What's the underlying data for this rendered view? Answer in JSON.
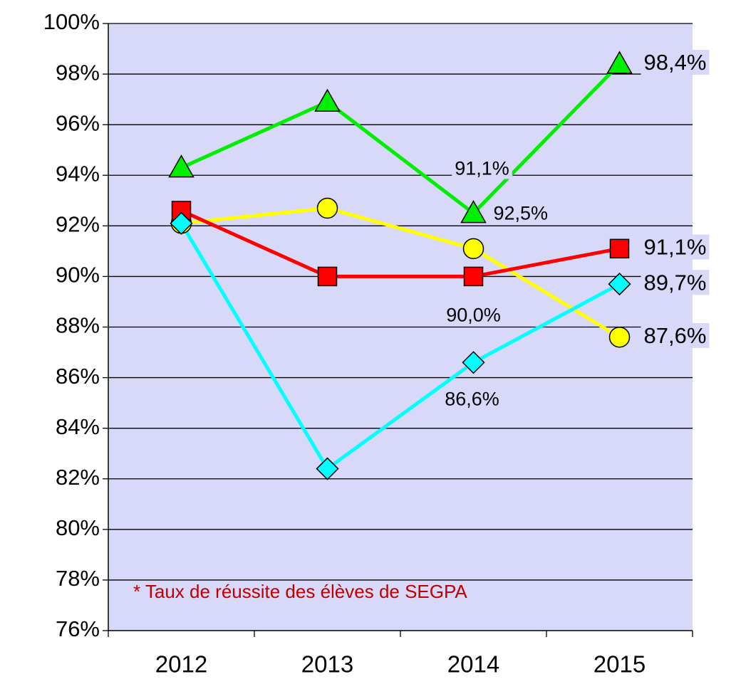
{
  "chart_data": {
    "type": "line",
    "categories": [
      "2012",
      "2013",
      "2014",
      "2015"
    ],
    "series": [
      {
        "color": "#00ee00",
        "marker": "triangle",
        "values": [
          94.3,
          96.9,
          92.5,
          98.4
        ],
        "value_labels": [
          null,
          null,
          "92,5%",
          "98,4%"
        ]
      },
      {
        "color": "#ffff00",
        "marker": "circle",
        "values": [
          92.1,
          92.7,
          91.1,
          87.6
        ],
        "value_labels": [
          null,
          null,
          "91,1%",
          "87,6%"
        ]
      },
      {
        "color": "#ff0000",
        "marker": "square",
        "values": [
          92.6,
          90.0,
          90.0,
          91.1
        ],
        "value_labels": [
          null,
          null,
          "90,0%",
          "91,1%"
        ]
      },
      {
        "color": "#00ffff",
        "marker": "diamond",
        "values": [
          92.1,
          82.4,
          86.6,
          89.7
        ],
        "value_labels": [
          null,
          null,
          "86,6%",
          "89,7%"
        ]
      }
    ],
    "ylim": [
      76,
      100
    ],
    "yticks": [
      {
        "value": 76,
        "label": "76%"
      },
      {
        "value": 78,
        "label": "78%"
      },
      {
        "value": 80,
        "label": "80%"
      },
      {
        "value": 82,
        "label": "82%"
      },
      {
        "value": 84,
        "label": "84%"
      },
      {
        "value": 86,
        "label": "86%"
      },
      {
        "value": 88,
        "label": "88%"
      },
      {
        "value": 90,
        "label": "90%"
      },
      {
        "value": 92,
        "label": "92%"
      },
      {
        "value": 94,
        "label": "94%"
      },
      {
        "value": 96,
        "label": "96%"
      },
      {
        "value": 98,
        "label": "98%"
      },
      {
        "value": 100,
        "label": "100%"
      }
    ],
    "grid": true,
    "annotation": "* Taux de réussite des élèves de SEGPA"
  }
}
